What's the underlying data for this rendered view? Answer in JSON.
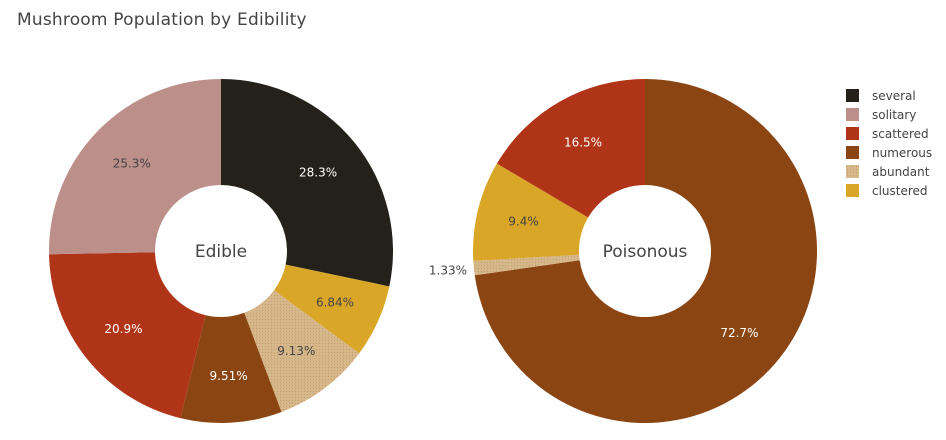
{
  "chart_data": [
    {
      "type": "pie",
      "hole": 0.38,
      "title": "Mushroom Population by Edibility",
      "center_label": "Edible",
      "slices": [
        {
          "label": "several",
          "value": 28.3,
          "text": "28.3%",
          "color": "#24211a"
        },
        {
          "label": "clustered",
          "value": 6.84,
          "text": "6.84%",
          "color": "#daa628"
        },
        {
          "label": "abundant",
          "value": 9.13,
          "text": "9.13%",
          "color": "#d7b88a"
        },
        {
          "label": "numerous",
          "value": 9.51,
          "text": "9.51%",
          "color": "#8b4513"
        },
        {
          "label": "scattered",
          "value": 20.9,
          "text": "20.9%",
          "color": "#b03418"
        },
        {
          "label": "solitary",
          "value": 25.3,
          "text": "25.3%",
          "color": "#bc8f8a"
        }
      ]
    },
    {
      "type": "pie",
      "hole": 0.38,
      "center_label": "Poisonous",
      "slices": [
        {
          "label": "numerous",
          "value": 72.7,
          "text": "72.7%",
          "color": "#8b4513"
        },
        {
          "label": "abundant",
          "value": 1.33,
          "text": "1.33%",
          "color": "#d7b88a"
        },
        {
          "label": "clustered",
          "value": 9.4,
          "text": "9.4%",
          "color": "#daa628"
        },
        {
          "label": "scattered",
          "value": 16.5,
          "text": "16.5%",
          "color": "#b03418"
        }
      ]
    }
  ],
  "title": "Mushroom Population by Edibility",
  "legend": [
    {
      "label": "several",
      "color": "#24211a"
    },
    {
      "label": "solitary",
      "color": "#bc8f8a"
    },
    {
      "label": "scattered",
      "color": "#b03418"
    },
    {
      "label": "numerous",
      "color": "#8b4513"
    },
    {
      "label": "abundant",
      "color": "#d7b88a"
    },
    {
      "label": "clustered",
      "color": "#daa628"
    }
  ]
}
